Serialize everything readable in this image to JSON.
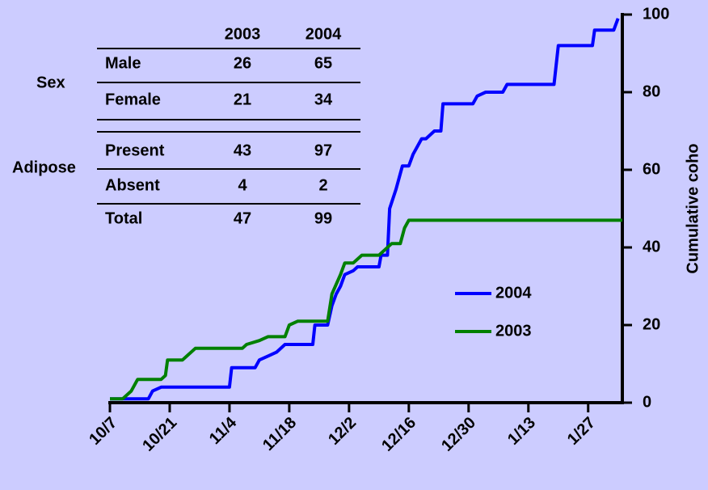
{
  "chart_data": {
    "type": "line",
    "y_axis_label": "Cumulative coho",
    "xlim": [
      0,
      120
    ],
    "xticks": [
      {
        "value": 0,
        "label": "10/7"
      },
      {
        "value": 14,
        "label": "10/21"
      },
      {
        "value": 28,
        "label": "11/4"
      },
      {
        "value": 42,
        "label": "11/18"
      },
      {
        "value": 56,
        "label": "12/2"
      },
      {
        "value": 70,
        "label": "12/16"
      },
      {
        "value": 84,
        "label": "12/30"
      },
      {
        "value": 98,
        "label": "1/13"
      },
      {
        "value": 112,
        "label": "1/27"
      }
    ],
    "ylim": [
      0,
      100
    ],
    "yticks": [
      0,
      20,
      40,
      60,
      80,
      100
    ],
    "series": [
      {
        "name": "2004",
        "color": "#0000ff",
        "x": [
          0,
          9,
          10,
          12,
          28,
          28.5,
          34,
          35,
          37,
          39,
          41,
          47.5,
          48,
          51,
          52,
          53,
          54,
          55,
          57,
          58,
          63,
          63.5,
          65,
          65.5,
          67,
          68.5,
          70,
          71,
          73,
          74,
          76,
          77.5,
          78,
          85,
          86,
          88,
          92,
          93,
          104,
          105,
          113,
          113.5,
          118,
          119
        ],
        "values": [
          1,
          1,
          3,
          4,
          4,
          9,
          9,
          11,
          12,
          13,
          15,
          15,
          20,
          20,
          25,
          28,
          30,
          33,
          34,
          35,
          35,
          38,
          38,
          50,
          55,
          61,
          61,
          64,
          68,
          68,
          70,
          70,
          77,
          77,
          79,
          80,
          80,
          82,
          82,
          92,
          92,
          96,
          96,
          99
        ]
      },
      {
        "name": "2003",
        "color": "#008000",
        "x": [
          0,
          3,
          5,
          6.5,
          12,
          13,
          13.5,
          17,
          18,
          20,
          31,
          32,
          35,
          37,
          41,
          42,
          44,
          51,
          52,
          54,
          55,
          57,
          59,
          63,
          64,
          66,
          68,
          69,
          70,
          120
        ],
        "values": [
          1,
          1,
          3,
          6,
          6,
          7,
          11,
          11,
          12,
          14,
          14,
          15,
          16,
          17,
          17,
          20,
          21,
          21,
          28,
          33,
          36,
          36,
          38,
          38,
          39,
          41,
          41,
          45,
          47,
          47
        ]
      }
    ],
    "table": {
      "columns": [
        "2003",
        "2004"
      ],
      "groups": [
        {
          "label": "Sex",
          "rows": [
            [
              "Male",
              26,
              65
            ],
            [
              "Female",
              21,
              34
            ]
          ]
        },
        {
          "label": "Adipose",
          "rows": [
            [
              "Present",
              43,
              97
            ],
            [
              "Absent",
              4,
              2
            ]
          ]
        }
      ],
      "total": [
        "Total",
        47,
        99
      ]
    }
  }
}
